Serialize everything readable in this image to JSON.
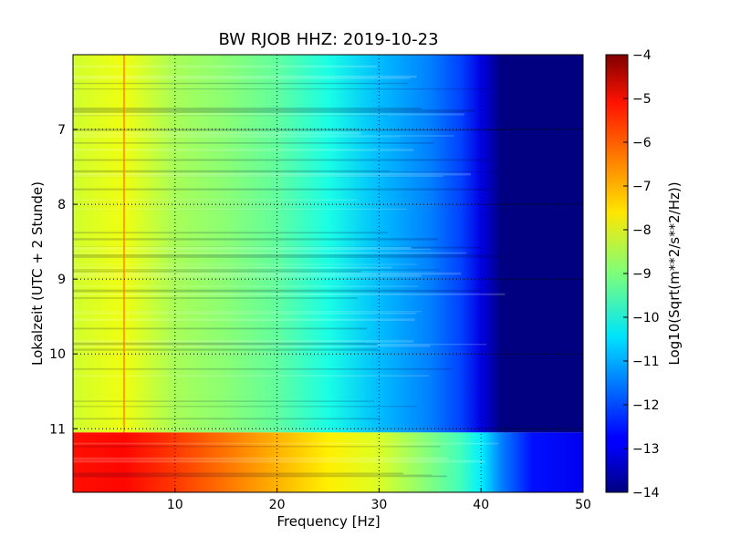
{
  "chart_data": {
    "type": "heatmap",
    "title": "BW RJOB HHZ: 2019-10-23",
    "xlabel": "Frequency [Hz]",
    "ylabel": "Lokalzeit (UTC + 2 Stunde)",
    "xlim": [
      0,
      50
    ],
    "ylim": [
      6.0,
      11.85
    ],
    "y_inverted": true,
    "x_ticks": [
      10,
      20,
      30,
      40,
      50
    ],
    "y_ticks": [
      7,
      8,
      9,
      10,
      11
    ],
    "grid": true,
    "colormap": "jet",
    "colorbar": {
      "label": "Log10(Sqrt(m**2/s**2/Hz))",
      "range": [
        -14,
        -4
      ],
      "ticks": [
        -4,
        -5,
        -6,
        -7,
        -8,
        -9,
        -10,
        -11,
        -12,
        -13,
        -14
      ]
    },
    "regions": [
      {
        "time_range": [
          6.0,
          11.05
        ],
        "freq_hz": [
          0,
          5,
          10,
          15,
          20,
          25,
          30,
          35,
          38,
          40,
          42,
          45,
          50
        ],
        "level": [
          -8.2,
          -7.9,
          -8.6,
          -8.9,
          -9.3,
          -10.0,
          -10.9,
          -11.5,
          -12.1,
          -13.0,
          -14.0,
          -14.0,
          -14.0
        ]
      },
      {
        "time_range": [
          11.05,
          11.85
        ],
        "freq_hz": [
          0,
          5,
          10,
          15,
          20,
          25,
          30,
          35,
          38,
          40,
          42,
          45,
          50
        ],
        "level": [
          -5.4,
          -5.3,
          -5.8,
          -6.4,
          -7.0,
          -7.6,
          -8.1,
          -9.0,
          -9.6,
          -10.4,
          -11.5,
          -12.6,
          -12.9
        ]
      }
    ],
    "lines": [
      {
        "freq_hz": 5,
        "level": -6.5
      }
    ]
  },
  "colors": {
    "background": "#ffffff",
    "grid": "#000000"
  }
}
